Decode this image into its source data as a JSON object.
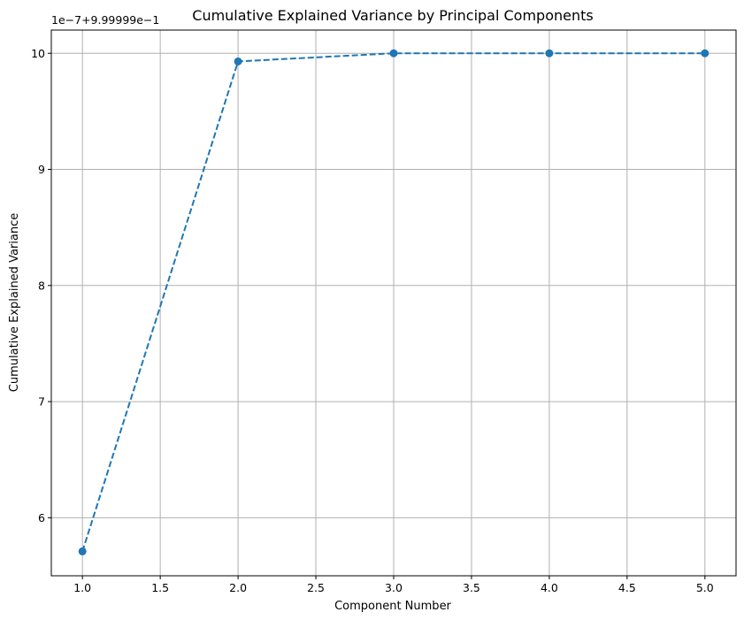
{
  "chart_data": {
    "type": "line",
    "title": "Cumulative Explained Variance by Principal Components",
    "xlabel": "Component Number",
    "ylabel": "Cumulative Explained Variance",
    "y_offset_label": "1e−7+9.99999e−1",
    "x": [
      1,
      2,
      3,
      4,
      5
    ],
    "series": [
      {
        "values": [
          5.71,
          9.93,
          10.0,
          10.0,
          10.0
        ],
        "color": "#1f77b4",
        "linestyle": "dashed",
        "marker": "circle"
      }
    ],
    "xlim": [
      0.8,
      5.2
    ],
    "ylim": [
      5.5,
      10.2
    ],
    "xticks": [
      1.0,
      1.5,
      2.0,
      2.5,
      3.0,
      3.5,
      4.0,
      4.5,
      5.0
    ],
    "xtick_labels": [
      "1.0",
      "1.5",
      "2.0",
      "2.5",
      "3.0",
      "3.5",
      "4.0",
      "4.5",
      "5.0"
    ],
    "yticks": [
      6,
      7,
      8,
      9,
      10
    ],
    "ytick_labels": [
      "6",
      "7",
      "8",
      "9",
      "10"
    ],
    "grid": true
  }
}
